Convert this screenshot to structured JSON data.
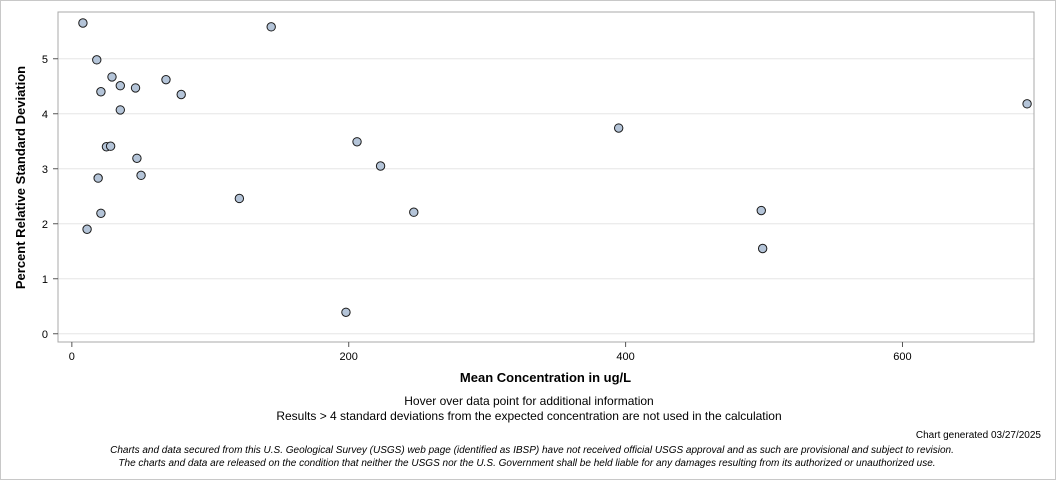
{
  "chart_data": {
    "type": "scatter",
    "xlabel": "Mean Concentration in ug/L",
    "ylabel": "Percent Relative Standard Deviation",
    "xlim": [
      -10,
      695
    ],
    "ylim": [
      -0.15,
      5.85
    ],
    "xticks": [
      0,
      200,
      400,
      600
    ],
    "yticks": [
      0,
      1,
      2,
      3,
      4,
      5
    ],
    "grid": "horizontal",
    "points": [
      {
        "x": 8,
        "y": 5.65
      },
      {
        "x": 11,
        "y": 1.9
      },
      {
        "x": 18,
        "y": 4.98
      },
      {
        "x": 19,
        "y": 2.83
      },
      {
        "x": 21,
        "y": 4.4
      },
      {
        "x": 21,
        "y": 2.19
      },
      {
        "x": 25,
        "y": 3.4
      },
      {
        "x": 28,
        "y": 3.41
      },
      {
        "x": 29,
        "y": 4.67
      },
      {
        "x": 35,
        "y": 4.51
      },
      {
        "x": 35,
        "y": 4.07
      },
      {
        "x": 46,
        "y": 4.47
      },
      {
        "x": 47,
        "y": 3.19
      },
      {
        "x": 50,
        "y": 2.88
      },
      {
        "x": 68,
        "y": 4.62
      },
      {
        "x": 79,
        "y": 4.35
      },
      {
        "x": 121,
        "y": 2.46
      },
      {
        "x": 144,
        "y": 5.58
      },
      {
        "x": 198,
        "y": 0.39
      },
      {
        "x": 206,
        "y": 3.49
      },
      {
        "x": 223,
        "y": 3.05
      },
      {
        "x": 247,
        "y": 2.21
      },
      {
        "x": 395,
        "y": 3.74
      },
      {
        "x": 498,
        "y": 2.24
      },
      {
        "x": 499,
        "y": 1.55
      },
      {
        "x": 690,
        "y": 4.18
      }
    ],
    "marker_fill": "#b4c4d8",
    "marker_stroke": "#1a1a1a",
    "grid_color": "#e6e6e6",
    "frame_color": "#a8a8a8"
  },
  "notes": {
    "hover": "Hover over data point for additional information",
    "results": "Results > 4 standard deviations from the expected concentration are not used in the calculation",
    "generated": "Chart generated 03/27/2025",
    "disclaimer_line1": "Charts and data secured from this U.S. Geological Survey (USGS) web page (identified as IBSP) have not received official USGS approval and as such are provisional and subject to revision.",
    "disclaimer_line2": "The charts and data are released on the condition that neither the USGS nor the U.S. Government shall be held liable for any damages resulting from its authorized or unauthorized use."
  }
}
